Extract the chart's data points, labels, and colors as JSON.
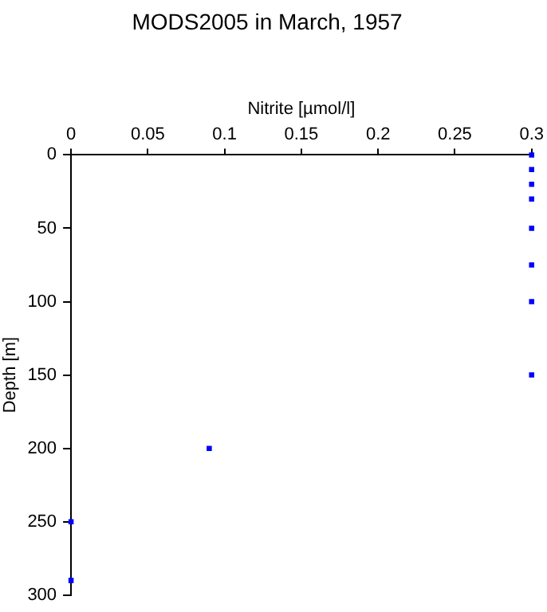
{
  "chart_data": {
    "type": "scatter",
    "title": "MODS2005 in March, 1957",
    "xlabel": "Nitrite [µmol/l]",
    "ylabel": "Depth [m]",
    "x": [
      0.3,
      0.3,
      0.3,
      0.3,
      0.3,
      0.3,
      0.3,
      0.3,
      0.09,
      0,
      0
    ],
    "series": [
      {
        "color": "#0000ff",
        "values": [
          0,
          10,
          20,
          30,
          50,
          75,
          100,
          150,
          200,
          250,
          290
        ]
      }
    ],
    "xlim": [
      0,
      0.3
    ],
    "xticks": [
      0,
      0.05,
      0.1,
      0.15,
      0.2,
      0.25,
      0.3
    ],
    "ylim": [
      300,
      0
    ],
    "yticks": [
      0,
      50,
      100,
      150,
      200,
      250,
      300
    ],
    "grid": false,
    "legend": false,
    "marker": "square"
  }
}
